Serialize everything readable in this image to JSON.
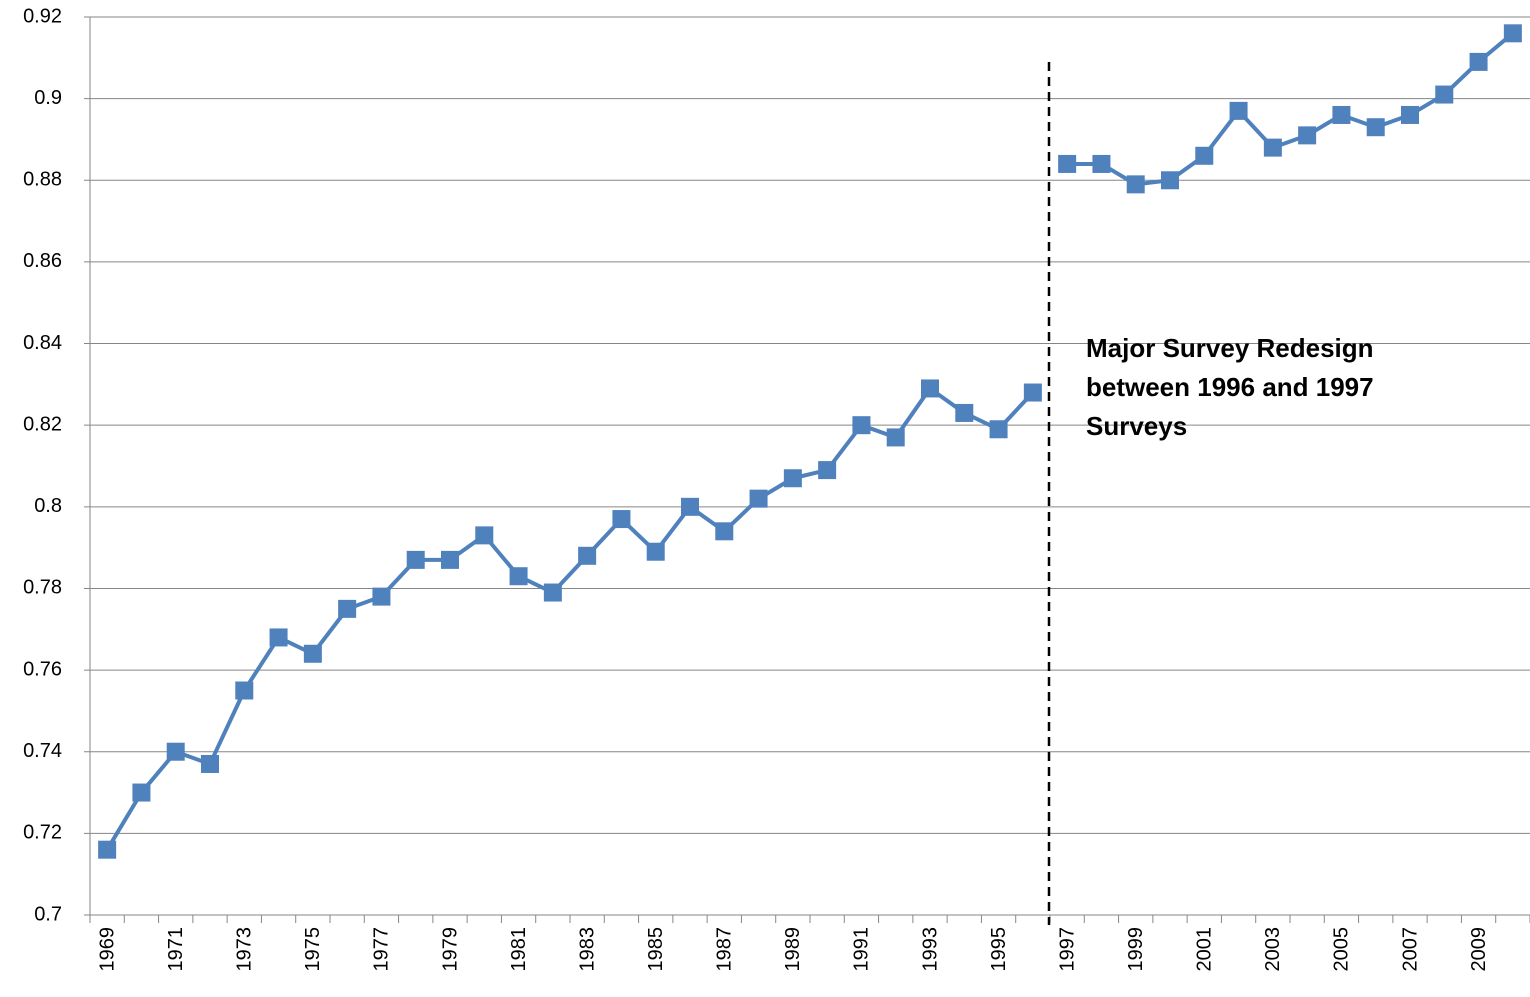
{
  "chart_data": {
    "type": "line",
    "annotation": [
      "Major Survey Redesign",
      "between 1996 and 1997",
      "Surveys"
    ],
    "categories": [
      "1969",
      null,
      "1971",
      null,
      "1973",
      null,
      "1975",
      null,
      "1977",
      null,
      "1979",
      null,
      "1981",
      null,
      "1983",
      null,
      "1985",
      null,
      "1987",
      null,
      "1989",
      null,
      "1991",
      null,
      "1993",
      null,
      "1995",
      null,
      "1997",
      null,
      "1999",
      null,
      "2001",
      null,
      "2003",
      null,
      "2005",
      null,
      "2007",
      null,
      "2009",
      null
    ],
    "series": [
      {
        "color": "#4f81bd",
        "values": [
          0.716,
          0.73,
          0.74,
          0.737,
          0.755,
          0.768,
          0.764,
          0.775,
          0.778,
          0.787,
          0.787,
          0.793,
          0.783,
          0.779,
          0.788,
          0.797,
          0.789,
          0.8,
          0.794,
          0.802,
          0.807,
          0.809,
          0.82,
          0.817,
          0.829,
          0.823,
          0.819,
          0.828,
          null,
          null,
          null,
          null,
          null,
          null,
          null,
          null,
          null,
          null,
          null,
          null,
          null,
          null
        ]
      },
      {
        "color": "#4f81bd",
        "values": [
          null,
          null,
          null,
          null,
          null,
          null,
          null,
          null,
          null,
          null,
          null,
          null,
          null,
          null,
          null,
          null,
          null,
          null,
          null,
          null,
          null,
          null,
          null,
          null,
          null,
          null,
          null,
          null,
          0.884,
          0.884,
          0.879,
          0.88,
          0.886,
          0.897,
          0.888,
          0.891,
          0.896,
          0.893,
          0.896,
          0.901,
          0.909,
          0.916
        ]
      }
    ],
    "ylim": [
      0.7,
      0.92
    ],
    "yticks": [
      0.7,
      0.72,
      0.74,
      0.76,
      0.78,
      0.8,
      0.82,
      0.84,
      0.86,
      0.88,
      0.9,
      0.92
    ],
    "grid": true
  }
}
